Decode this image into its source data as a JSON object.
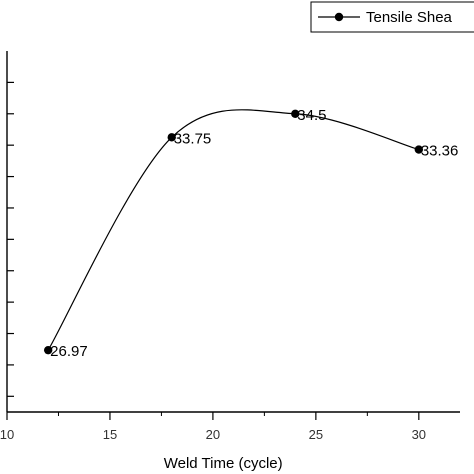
{
  "chart_data": {
    "type": "line",
    "title": "",
    "xlabel": "Weld Time (cycle)",
    "ylabel": "",
    "xlim": [
      10,
      32
    ],
    "ylim": [
      25.0,
      36.5
    ],
    "x_ticks": [
      10,
      15,
      20,
      25,
      30
    ],
    "x_tick_labels": [
      "10",
      "15",
      "20",
      "25",
      "30"
    ],
    "y_ticks": [
      25.5,
      26.5,
      27.5,
      28.5,
      29.5,
      30.5,
      31.5,
      32.5,
      33.5,
      34.5,
      35.5
    ],
    "grid": false,
    "smooth": true,
    "legend_position": "top-right",
    "series": [
      {
        "name": "Tensile Shea",
        "x": [
          12,
          18,
          24,
          30
        ],
        "y": [
          26.97,
          33.75,
          34.5,
          33.36
        ],
        "labels": [
          "26.97",
          "33.75",
          "34.5",
          "33.36"
        ]
      }
    ],
    "colors": {
      "line": "#000000",
      "marker": "#000000",
      "axis": "#000000"
    }
  }
}
